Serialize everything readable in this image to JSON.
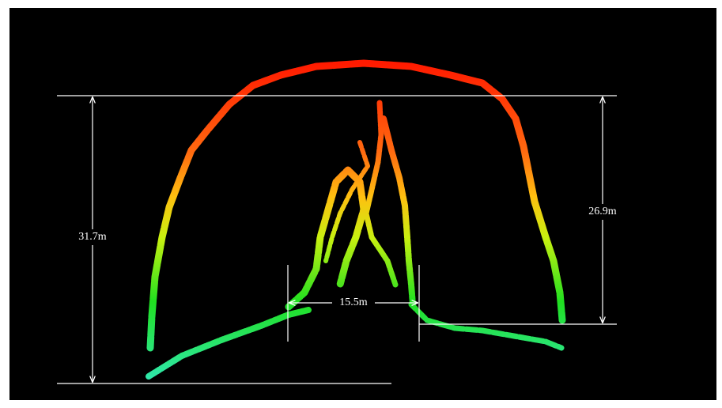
{
  "annotations": [
    {
      "label": "31.7m"
    },
    {
      "label": "26.9m"
    },
    {
      "label": "15.5m"
    }
  ]
}
